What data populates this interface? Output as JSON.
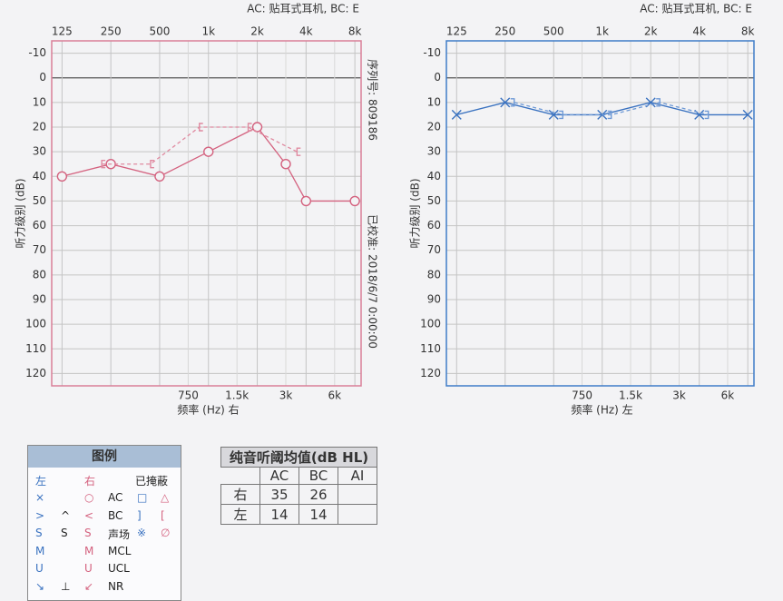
{
  "chart_data": [
    {
      "type": "line",
      "subtitle": "AC: 贴耳式耳机, BC: E",
      "xlabel": "频率 (Hz) 右",
      "ylabel": "听力级别 (dB)",
      "side_labels": [
        "序列号: 809186",
        "已校准: 2018/6/7 0:00:00"
      ],
      "log_x": true,
      "y_inverted": true,
      "xlim": [
        108,
        8740
      ],
      "ylim": [
        -15,
        125
      ],
      "xticks": [
        125,
        250,
        500,
        {
          "value": 1000,
          "label": "1k"
        },
        {
          "value": 2000,
          "label": "2k"
        },
        {
          "value": 4000,
          "label": "4k"
        },
        {
          "value": 8000,
          "label": "8k"
        }
      ],
      "xticks_minor": [
        750,
        {
          "value": 1500,
          "label": "1.5k"
        },
        {
          "value": 3000,
          "label": "3k"
        },
        {
          "value": 6000,
          "label": "6k"
        }
      ],
      "yticks": [
        -10,
        0,
        10,
        20,
        30,
        40,
        50,
        60,
        70,
        80,
        90,
        100,
        110,
        120
      ],
      "grid": true,
      "frame_color": "#d97f98",
      "series": [
        {
          "color": "#d4627f",
          "marker": "circle",
          "dashed": false,
          "x": [
            125,
            250,
            500,
            1000,
            2000,
            3000,
            4000,
            8000
          ],
          "values": [
            40,
            35,
            40,
            30,
            20,
            35,
            50,
            50
          ]
        },
        {
          "color": "#e08aa0",
          "marker": "bracket-left",
          "dashed": true,
          "x": [
            250,
            500,
            1000,
            2000,
            4000
          ],
          "values": [
            35,
            35,
            20,
            20,
            30
          ]
        }
      ]
    },
    {
      "type": "line",
      "subtitle": "AC: 贴耳式耳机, BC: E",
      "xlabel": "频率 (Hz) 左",
      "ylabel": "听力级别 (dB)",
      "log_x": true,
      "y_inverted": true,
      "xlim": [
        108,
        8740
      ],
      "ylim": [
        -15,
        125
      ],
      "xticks": [
        125,
        250,
        500,
        {
          "value": 1000,
          "label": "1k"
        },
        {
          "value": 2000,
          "label": "2k"
        },
        {
          "value": 4000,
          "label": "4k"
        },
        {
          "value": 8000,
          "label": "8k"
        }
      ],
      "xticks_minor": [
        750,
        {
          "value": 1500,
          "label": "1.5k"
        },
        {
          "value": 3000,
          "label": "3k"
        },
        {
          "value": 6000,
          "label": "6k"
        }
      ],
      "yticks": [
        -10,
        0,
        10,
        20,
        30,
        40,
        50,
        60,
        70,
        80,
        90,
        100,
        110,
        120
      ],
      "grid": true,
      "frame_color": "#3f7cc8",
      "series": [
        {
          "color": "#3a72c0",
          "marker": "cross",
          "dashed": false,
          "x": [
            125,
            250,
            500,
            1000,
            2000,
            4000,
            8000
          ],
          "values": [
            15,
            10,
            15,
            15,
            10,
            15,
            15
          ]
        },
        {
          "color": "#6f9ad6",
          "marker": "bracket-right",
          "dashed": true,
          "x": [
            250,
            500,
            1000,
            2000,
            4000
          ],
          "values": [
            10,
            15,
            15,
            10,
            15
          ]
        }
      ]
    }
  ],
  "legend": {
    "title": "图例",
    "headers": {
      "left": "左",
      "right": "右",
      "masked": "已掩蔽"
    },
    "rows": [
      {
        "left": "×",
        "right": "○",
        "label": "AC",
        "mb": "□",
        "mr": "△"
      },
      {
        "left": ">",
        "mid": "^",
        "right": "<",
        "label": "BC",
        "mb": "]",
        "mr": "["
      },
      {
        "left": "S",
        "mid": "S",
        "right": "S",
        "label": "声场",
        "mb": "※",
        "mr": "∅"
      },
      {
        "left": "M",
        "right": "M",
        "label": "MCL"
      },
      {
        "left": "U",
        "right": "U",
        "label": "UCL"
      },
      {
        "left": "↘",
        "mid": "⊥",
        "right": "↙",
        "label": "NR"
      }
    ]
  },
  "table": {
    "title": "纯音听阈均值(dB HL)",
    "columns": [
      "AC",
      "BC",
      "AI"
    ],
    "rows": [
      [
        "右",
        35,
        26,
        null
      ],
      [
        "左",
        14,
        14,
        null
      ]
    ]
  }
}
